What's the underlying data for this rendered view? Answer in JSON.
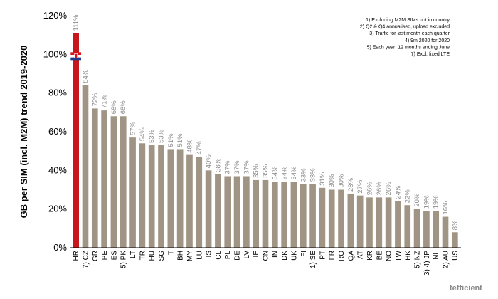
{
  "chart_data": {
    "type": "bar",
    "ylabel": "GB per SIM (incl. M2M) trend 2019-2020",
    "xlabel": "",
    "ylim": [
      0,
      120
    ],
    "yticks": [
      "0%",
      "20%",
      "40%",
      "60%",
      "80%",
      "100%",
      "120%"
    ],
    "categories": [
      "HR",
      "7) CZ",
      "GR",
      "PE",
      "ES",
      "5) PK",
      "LT",
      "TR",
      "HU",
      "SG",
      "IT",
      "BH",
      "MY",
      "LU",
      "IS",
      "CL",
      "PL",
      "DE",
      "LV",
      "IE",
      "CN",
      "IN",
      "DK",
      "UK",
      "FI",
      "1) SE",
      "PT",
      "FR",
      "RO",
      "QA",
      "AT",
      "KR",
      "BE",
      "NO",
      "TW",
      "HK",
      "5) NZ",
      "3) 4) JP",
      "NL",
      "2) AU",
      "US"
    ],
    "values": [
      111,
      84,
      72,
      71,
      68,
      68,
      57,
      54,
      53,
      53,
      51,
      51,
      48,
      47,
      40,
      38,
      37,
      37,
      37,
      35,
      35,
      34,
      34,
      34,
      33,
      33,
      31,
      30,
      30,
      28,
      27,
      26,
      26,
      26,
      24,
      22,
      20,
      19,
      19,
      16,
      8
    ],
    "data_labels": [
      "111%",
      "84%",
      "72%",
      "71%",
      "68%",
      "68%",
      "57%",
      "54%",
      "53%",
      "53%",
      "51%",
      "51%",
      "48%",
      "47%",
      "40%",
      "38%",
      "37%",
      "37%",
      "37%",
      "35%",
      "35%",
      "34%",
      "34%",
      "34%",
      "33%",
      "33%",
      "31%",
      "30%",
      "30%",
      "28%",
      "27%",
      "26%",
      "26%",
      "26%",
      "24%",
      "22%",
      "20%",
      "19%",
      "19%",
      "16%",
      "8%"
    ],
    "highlight_category": "HR",
    "colors": {
      "bar": "#a09584",
      "highlight": "#c8161d",
      "axis": "#000000",
      "data_label": "#8a8a8a"
    },
    "grid": false,
    "notes": [
      "1) Excluding M2M SIMs not in country",
      "2) Q2 & Q4 annualised, upload excluded",
      "3) Traffic for last month each quarter",
      "4) 9m 2020 for 2020",
      "5) Each year: 12 months ending June",
      "7) Excl. fixed LTE"
    ],
    "notes_placement": "top-right"
  },
  "brand": "tefficient"
}
